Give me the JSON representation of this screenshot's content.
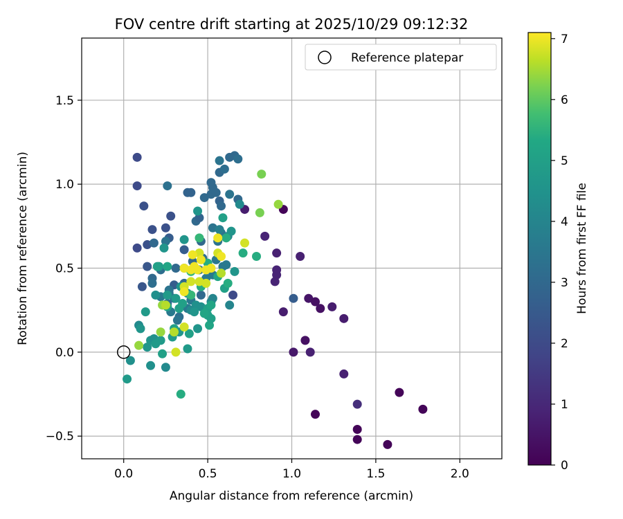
{
  "chart_data": {
    "type": "scatter",
    "title": "FOV centre drift starting at 2025/10/29 09:12:32",
    "xlabel": "Angular distance from reference (arcmin)",
    "ylabel": "Rotation from reference (arcmin)",
    "xlim": [
      -0.25,
      2.25
    ],
    "ylim": [
      -0.635,
      1.87
    ],
    "xticks": [
      0.0,
      0.5,
      1.0,
      1.5,
      2.0
    ],
    "xtick_labels": [
      "0.0",
      "0.5",
      "1.0",
      "1.5",
      "2.0"
    ],
    "yticks": [
      -0.5,
      0.0,
      0.5,
      1.0,
      1.5
    ],
    "ytick_labels": [
      "−0.5",
      "0.0",
      "0.5",
      "1.0",
      "1.5"
    ],
    "grid": true,
    "legend": {
      "position": "top-right",
      "label": "Reference platepar"
    },
    "reference_point": {
      "x": 0.0,
      "y": 0.0,
      "marker": "hollow-circle"
    },
    "colorbar": {
      "label": "Hours from first FF file",
      "colormap": "viridis",
      "range": [
        0,
        7.1
      ],
      "ticks": [
        0,
        1,
        2,
        3,
        4,
        5,
        6,
        7
      ],
      "tick_labels": [
        "0",
        "1",
        "2",
        "3",
        "4",
        "5",
        "6",
        "7"
      ]
    },
    "points": [
      [
        0.95,
        0.85,
        0.1
      ],
      [
        1.64,
        -0.24,
        0.1
      ],
      [
        1.78,
        -0.34,
        0.1
      ],
      [
        1.14,
        -0.37,
        0.1
      ],
      [
        1.39,
        -0.46,
        0.1
      ],
      [
        1.39,
        -0.52,
        0.1
      ],
      [
        1.57,
        -0.55,
        0.1
      ],
      [
        1.1,
        0.32,
        0.5
      ],
      [
        1.14,
        0.3,
        0.4
      ],
      [
        1.17,
        0.26,
        0.4
      ],
      [
        1.24,
        0.27,
        0.7
      ],
      [
        1.31,
        0.2,
        0.7
      ],
      [
        1.08,
        0.07,
        0.4
      ],
      [
        1.11,
        0.0,
        0.8
      ],
      [
        1.01,
        0.0,
        0.6
      ],
      [
        1.31,
        -0.13,
        0.8
      ],
      [
        1.39,
        -0.31,
        1.2
      ],
      [
        1.05,
        0.57,
        0.8
      ],
      [
        0.95,
        0.24,
        0.7
      ],
      [
        0.72,
        0.85,
        0.7
      ],
      [
        0.84,
        0.69,
        0.9
      ],
      [
        0.91,
        0.59,
        0.8
      ],
      [
        0.91,
        0.49,
        0.9
      ],
      [
        0.91,
        0.46,
        0.9
      ],
      [
        0.9,
        0.42,
        0.9
      ],
      [
        1.01,
        0.32,
        2.6
      ],
      [
        0.65,
        0.34,
        2.0
      ],
      [
        0.08,
        1.16,
        2.0
      ],
      [
        0.08,
        0.99,
        2.0
      ],
      [
        0.12,
        0.87,
        2.2
      ],
      [
        0.17,
        0.73,
        2.2
      ],
      [
        0.08,
        0.62,
        2.0
      ],
      [
        0.14,
        0.64,
        2.2
      ],
      [
        0.11,
        0.39,
        2.4
      ],
      [
        0.14,
        0.51,
        2.4
      ],
      [
        0.25,
        0.74,
        2.2
      ],
      [
        0.28,
        0.81,
        2.2
      ],
      [
        0.27,
        0.68,
        2.6
      ],
      [
        0.3,
        0.4,
        2.6
      ],
      [
        0.31,
        0.5,
        3.0
      ],
      [
        0.36,
        0.61,
        2.6
      ],
      [
        0.36,
        0.41,
        3.0
      ],
      [
        0.38,
        0.95,
        2.8
      ],
      [
        0.4,
        0.95,
        2.8
      ],
      [
        0.41,
        0.54,
        3.0
      ],
      [
        0.43,
        0.78,
        3.0
      ],
      [
        0.45,
        0.8,
        2.8
      ],
      [
        0.46,
        0.66,
        3.0
      ],
      [
        0.47,
        0.56,
        3.2
      ],
      [
        0.46,
        0.34,
        3.0
      ],
      [
        0.48,
        0.92,
        3.0
      ],
      [
        0.52,
        0.94,
        3.0
      ],
      [
        0.52,
        1.01,
        3.0
      ],
      [
        0.53,
        0.98,
        3.0
      ],
      [
        0.55,
        0.95,
        3.0
      ],
      [
        0.57,
        0.9,
        2.8
      ],
      [
        0.58,
        0.87,
        3.0
      ],
      [
        0.57,
        1.07,
        3.0
      ],
      [
        0.6,
        1.09,
        3.2
      ],
      [
        0.63,
        1.16,
        3.0
      ],
      [
        0.66,
        1.17,
        3.0
      ],
      [
        0.68,
        1.15,
        3.2
      ],
      [
        0.68,
        0.91,
        3.0
      ],
      [
        0.57,
        1.14,
        3.4
      ],
      [
        0.56,
        0.66,
        3.4
      ],
      [
        0.63,
        0.94,
        3.4
      ],
      [
        0.58,
        0.71,
        3.4
      ],
      [
        0.53,
        0.74,
        3.4
      ],
      [
        0.55,
        0.55,
        3.5
      ],
      [
        0.59,
        0.51,
        3.5
      ],
      [
        0.61,
        0.52,
        3.6
      ],
      [
        0.26,
        0.99,
        3.3
      ],
      [
        0.18,
        0.65,
        3.0
      ],
      [
        0.17,
        0.44,
        3.0
      ],
      [
        0.17,
        0.41,
        3.2
      ],
      [
        0.22,
        0.49,
        3.2
      ],
      [
        0.25,
        0.66,
        3.4
      ],
      [
        0.27,
        0.37,
        3.4
      ],
      [
        0.3,
        0.32,
        3.5
      ],
      [
        0.26,
        0.29,
        3.2
      ],
      [
        0.28,
        0.24,
        3.6
      ],
      [
        0.33,
        0.21,
        3.2
      ],
      [
        0.32,
        0.19,
        3.4
      ],
      [
        0.38,
        0.26,
        3.6
      ],
      [
        0.4,
        0.31,
        3.6
      ],
      [
        0.45,
        0.49,
        3.4
      ],
      [
        0.49,
        0.44,
        3.6
      ],
      [
        0.53,
        0.46,
        3.6
      ],
      [
        0.57,
        0.73,
        3.8
      ],
      [
        0.22,
        0.33,
        3.6
      ],
      [
        0.27,
        0.35,
        3.5
      ],
      [
        0.36,
        0.5,
        4.4
      ],
      [
        0.43,
        0.28,
        4.4
      ],
      [
        0.46,
        0.27,
        4.4
      ],
      [
        0.52,
        0.3,
        4.2
      ],
      [
        0.53,
        0.32,
        4.0
      ],
      [
        0.63,
        0.28,
        4.0
      ],
      [
        0.66,
        0.48,
        4.6
      ],
      [
        0.62,
        0.69,
        4.0
      ],
      [
        0.64,
        0.72,
        4.6
      ],
      [
        0.69,
        0.88,
        4.2
      ],
      [
        0.44,
        0.84,
        4.6
      ],
      [
        0.34,
        0.39,
        4.6
      ],
      [
        0.36,
        0.67,
        4.6
      ],
      [
        0.38,
        0.35,
        4.2
      ],
      [
        0.4,
        0.25,
        4.2
      ],
      [
        0.42,
        0.24,
        4.6
      ],
      [
        0.44,
        0.14,
        4.6
      ],
      [
        0.33,
        0.12,
        4.6
      ],
      [
        0.3,
        0.14,
        5.0
      ],
      [
        0.29,
        0.09,
        4.8
      ],
      [
        0.25,
        -0.09,
        4.2
      ],
      [
        0.16,
        -0.08,
        4.4
      ],
      [
        0.04,
        -0.05,
        4.4
      ],
      [
        0.02,
        -0.16,
        4.8
      ],
      [
        0.09,
        0.16,
        4.2
      ],
      [
        0.1,
        0.14,
        4.6
      ],
      [
        0.13,
        0.24,
        4.8
      ],
      [
        0.14,
        0.03,
        4.6
      ],
      [
        0.16,
        0.07,
        4.6
      ],
      [
        0.18,
        0.08,
        4.4
      ],
      [
        0.19,
        0.05,
        4.8
      ],
      [
        0.22,
        0.07,
        4.8
      ],
      [
        0.23,
        -0.01,
        5.0
      ],
      [
        0.26,
        0.27,
        5.0
      ],
      [
        0.24,
        0.62,
        4.6
      ],
      [
        0.21,
        0.51,
        4.8
      ],
      [
        0.19,
        0.34,
        4.4
      ],
      [
        0.2,
        0.51,
        5.0
      ],
      [
        0.26,
        0.51,
        5.2
      ],
      [
        0.26,
        0.34,
        4.8
      ],
      [
        0.31,
        0.32,
        4.8
      ],
      [
        0.33,
        0.26,
        5.0
      ],
      [
        0.35,
        0.29,
        5.0
      ],
      [
        0.39,
        0.11,
        5.0
      ],
      [
        0.38,
        0.02,
        4.8
      ],
      [
        0.5,
        0.26,
        5.0
      ],
      [
        0.5,
        0.22,
        5.0
      ],
      [
        0.51,
        0.16,
        5.2
      ],
      [
        0.52,
        0.2,
        5.0
      ],
      [
        0.52,
        0.28,
        5.2
      ],
      [
        0.6,
        0.38,
        5.0
      ],
      [
        0.62,
        0.41,
        5.4
      ],
      [
        0.59,
        0.8,
        5.0
      ],
      [
        0.61,
        0.68,
        5.4
      ],
      [
        0.71,
        0.59,
        5.4
      ],
      [
        0.79,
        0.57,
        5.4
      ],
      [
        0.48,
        0.23,
        5.2
      ],
      [
        0.56,
        0.45,
        5.2
      ],
      [
        0.45,
        0.68,
        5.6
      ],
      [
        0.5,
        0.53,
        5.4
      ],
      [
        0.34,
        -0.25,
        5.4
      ],
      [
        0.46,
        0.39,
        5.4
      ],
      [
        0.4,
        0.34,
        5.6
      ],
      [
        0.4,
        0.48,
        5.6
      ],
      [
        0.82,
        1.06,
        6.2
      ],
      [
        0.81,
        0.83,
        6.2
      ],
      [
        0.92,
        0.88,
        6.4
      ],
      [
        0.72,
        0.65,
        6.8
      ],
      [
        0.56,
        0.68,
        7.0
      ],
      [
        0.56,
        0.59,
        6.8
      ],
      [
        0.58,
        0.57,
        7.0
      ],
      [
        0.45,
        0.59,
        6.8
      ],
      [
        0.46,
        0.55,
        7.0
      ],
      [
        0.41,
        0.58,
        7.0
      ],
      [
        0.42,
        0.51,
        7.0
      ],
      [
        0.44,
        0.49,
        7.0
      ],
      [
        0.49,
        0.49,
        7.0
      ],
      [
        0.4,
        0.49,
        7.0
      ],
      [
        0.36,
        0.5,
        7.0
      ],
      [
        0.36,
        0.39,
        6.8
      ],
      [
        0.36,
        0.36,
        7.0
      ],
      [
        0.4,
        0.42,
        6.8
      ],
      [
        0.45,
        0.42,
        6.8
      ],
      [
        0.49,
        0.41,
        6.8
      ],
      [
        0.52,
        0.5,
        7.0
      ],
      [
        0.58,
        0.47,
        6.6
      ],
      [
        0.36,
        0.15,
        6.8
      ],
      [
        0.3,
        0.12,
        6.6
      ],
      [
        0.31,
        0.0,
        6.8
      ],
      [
        0.23,
        0.28,
        6.4
      ],
      [
        0.22,
        0.12,
        6.4
      ],
      [
        0.09,
        0.04,
        6.4
      ],
      [
        0.25,
        0.28,
        6.6
      ]
    ]
  }
}
